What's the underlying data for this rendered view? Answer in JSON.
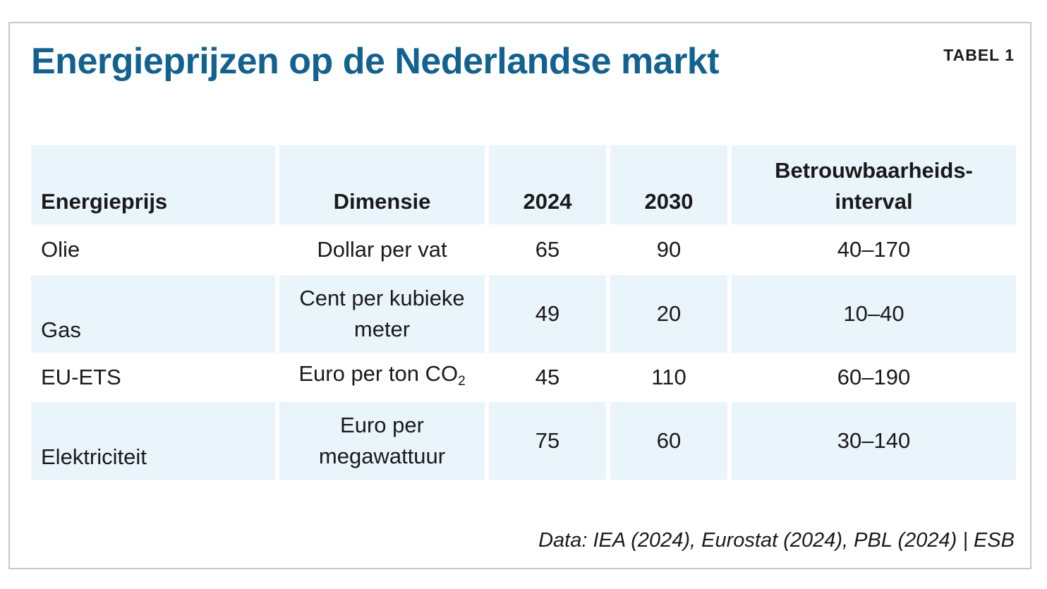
{
  "header": {
    "title": "Energieprijzen op de Nederlandse markt",
    "table_label": "TABEL 1"
  },
  "table": {
    "columns": [
      "Energieprijs",
      "Dimensie",
      "2024",
      "2030",
      "Betrouwbaarheids-interval"
    ],
    "column_5_line1": "Betrouwbaarheids-",
    "column_5_line2": "interval",
    "rows": [
      {
        "energieprijs": "Olie",
        "dimensie": "Dollar per vat",
        "y2024": "65",
        "y2030": "90",
        "interval": "40–170"
      },
      {
        "energieprijs": "Gas",
        "dimensie": "Cent per kubieke meter",
        "y2024": "49",
        "y2030": "20",
        "interval": "10–40"
      },
      {
        "energieprijs": "EU-ETS",
        "dimensie": "Euro per ton CO",
        "dimensie_subscript": "2",
        "y2024": "45",
        "y2030": "110",
        "interval": "60–190"
      },
      {
        "energieprijs": "Elektriciteit",
        "dimensie": "Euro per megawattuur",
        "y2024": "75",
        "y2030": "60",
        "interval": "30–140"
      }
    ]
  },
  "footer": {
    "source": "Data: IEA (2024), Eurostat (2024), PBL (2024) | ESB"
  },
  "colors": {
    "title": "#13618f",
    "row_shade": "#e9f4fb",
    "frame_border": "#c8c8c8"
  }
}
